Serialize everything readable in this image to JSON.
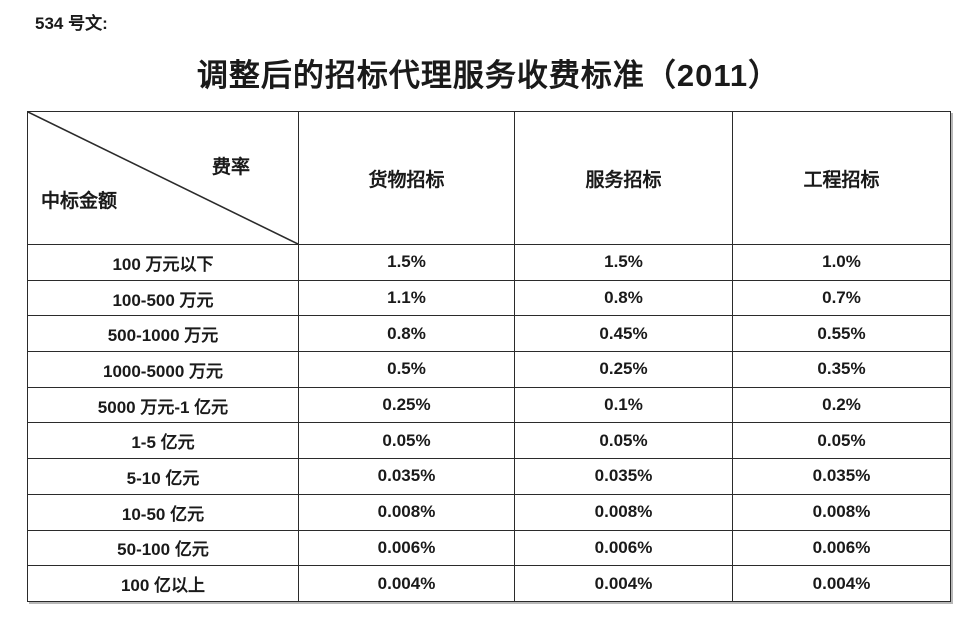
{
  "doc_label": "534 号文:",
  "title": "调整后的招标代理服务收费标准（2011）",
  "table": {
    "corner": {
      "top_right": "费率",
      "bottom_left": "中标金额"
    },
    "columns": [
      "货物招标",
      "服务招标",
      "工程招标"
    ],
    "rows": [
      {
        "range": "100 万元以下",
        "values": [
          "1.5%",
          "1.5%",
          "1.0%"
        ]
      },
      {
        "range": "100-500 万元",
        "values": [
          "1.1%",
          "0.8%",
          "0.7%"
        ]
      },
      {
        "range": "500-1000 万元",
        "values": [
          "0.8%",
          "0.45%",
          "0.55%"
        ]
      },
      {
        "range": "1000-5000 万元",
        "values": [
          "0.5%",
          "0.25%",
          "0.35%"
        ]
      },
      {
        "range": "5000 万元-1 亿元",
        "values": [
          "0.25%",
          "0.1%",
          "0.2%"
        ]
      },
      {
        "range": "1-5 亿元",
        "values": [
          "0.05%",
          "0.05%",
          "0.05%"
        ]
      },
      {
        "range": "5-10 亿元",
        "values": [
          "0.035%",
          "0.035%",
          "0.035%"
        ]
      },
      {
        "range": "10-50 亿元",
        "values": [
          "0.008%",
          "0.008%",
          "0.008%"
        ]
      },
      {
        "range": "50-100 亿元",
        "values": [
          "0.006%",
          "0.006%",
          "0.006%"
        ]
      },
      {
        "range": "100 亿以上",
        "values": [
          "0.004%",
          "0.004%",
          "0.004%"
        ]
      }
    ]
  },
  "colors": {
    "text": "#1a1a1a",
    "border": "#2b2b2b",
    "background": "#ffffff",
    "shadow": "#b8b8b8"
  }
}
